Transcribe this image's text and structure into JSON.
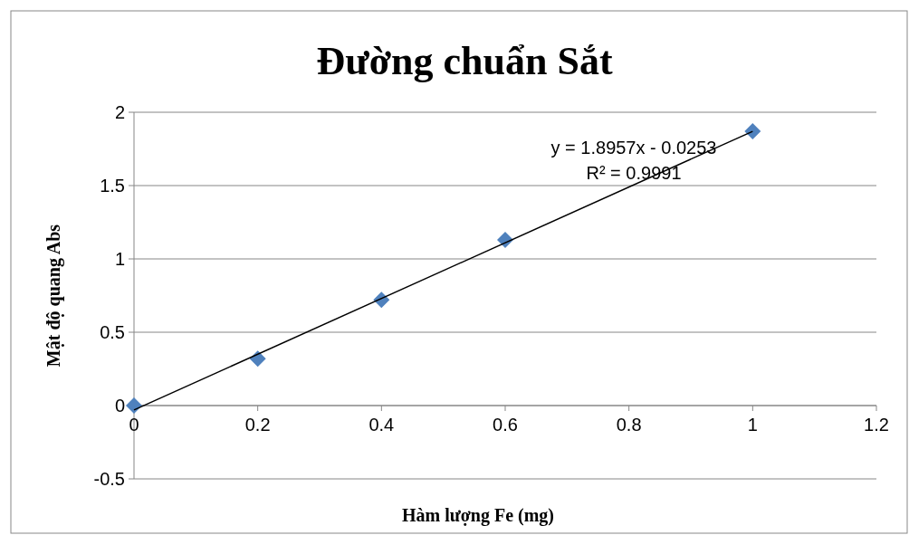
{
  "chart_data": {
    "type": "scatter",
    "title": "Đường chuẩn Sắt",
    "xlabel": "Hàm lượng Fe (mg)",
    "ylabel": "Mật độ quang Abs",
    "x": [
      0,
      0.2,
      0.4,
      0.6,
      1
    ],
    "series": [
      {
        "color": "#4f81bd",
        "marker": "diamond",
        "values": [
          0,
          0.32,
          0.72,
          1.13,
          1.87
        ]
      },
      {
        "type": "line",
        "color": "#000000",
        "marker": "none",
        "x": [
          0,
          1
        ],
        "values": [
          -0.03,
          1.87
        ]
      }
    ],
    "xlim": [
      0,
      1.2
    ],
    "xticks": [
      0,
      0.2,
      0.4,
      0.6,
      0.8,
      1,
      1.2
    ],
    "ylim": [
      -0.5,
      2
    ],
    "yticks": [
      -0.5,
      0,
      0.5,
      1,
      1.5,
      2
    ],
    "grid": "y",
    "annotations": [
      "y = 1.8957x - 0.0253",
      "R² = 0.9991"
    ]
  }
}
